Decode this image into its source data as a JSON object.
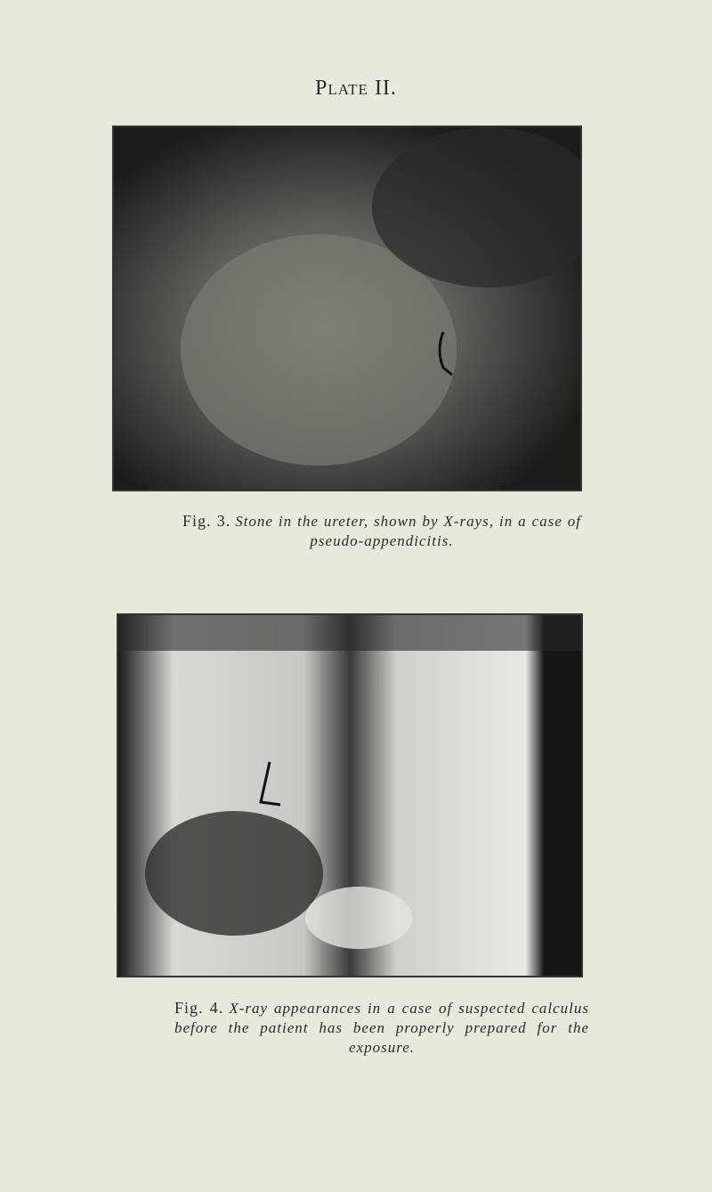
{
  "header": {
    "title": "Plate II."
  },
  "figures": [
    {
      "label": "Fig. 3.",
      "caption": "Stone in the ureter, shown by X-rays, in a case of pseudo-appendicitis."
    },
    {
      "label": "Fig. 4.",
      "caption": "X-ray appearances in a case of suspected calculus before the patient has been properly prepared for the exposure."
    }
  ]
}
